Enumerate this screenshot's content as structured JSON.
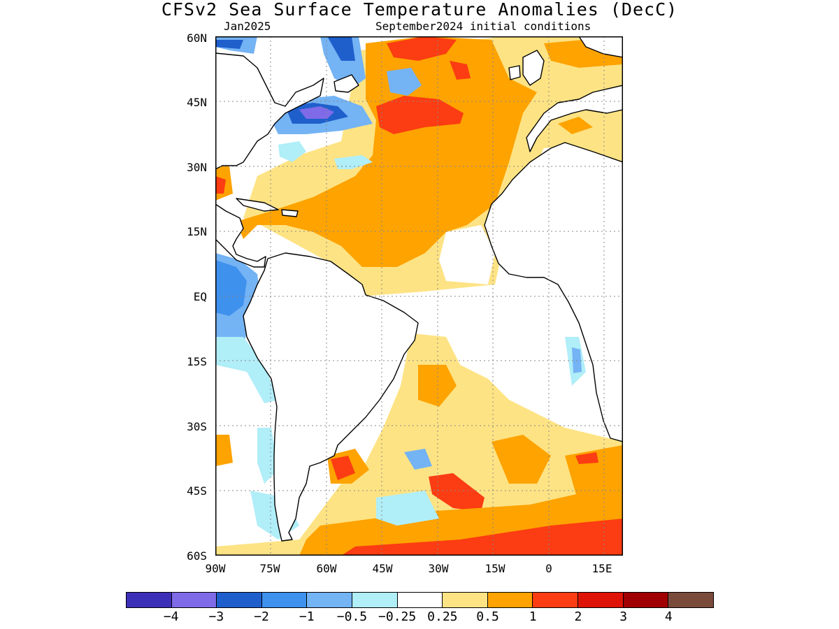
{
  "title": "CFSv2 Sea Surface Temperature Anomalies (DecC)",
  "forecast_month": "Jan2025",
  "initial_conditions": "September2024 initial conditions",
  "map": {
    "lon_range": [
      -90,
      20
    ],
    "lat_range": [
      -60,
      60
    ],
    "lat_ticks": [
      "60N",
      "45N",
      "30N",
      "15N",
      "EQ",
      "15S",
      "30S",
      "45S",
      "60S"
    ],
    "lon_ticks": [
      "90W",
      "75W",
      "60W",
      "45W",
      "30W",
      "15W",
      "0",
      "15E"
    ],
    "grid": "dotted",
    "land_color": "#ffffff",
    "coastline_color": "#000000"
  },
  "colorbar": {
    "colors": [
      "#3c2fb8",
      "#7f6be8",
      "#1f5fcc",
      "#3f91ee",
      "#74b3f4",
      "#b0eef8",
      "#ffffff",
      "#fee384",
      "#fea300",
      "#fc3c12",
      "#dd1407",
      "#a00000",
      "#7a4a3a"
    ],
    "labels": [
      "-4",
      "-3",
      "-2",
      "-1",
      "-0.5",
      "-0.25",
      "0.25",
      "0.5",
      "1",
      "2",
      "3",
      "4"
    ]
  }
}
